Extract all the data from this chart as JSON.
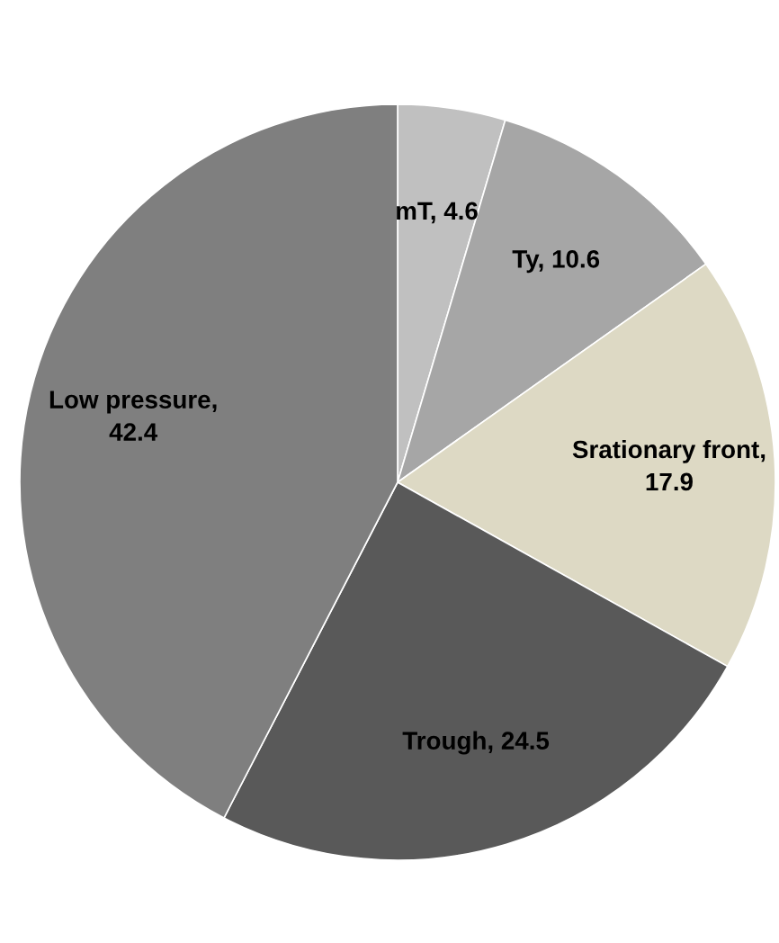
{
  "chart_data": {
    "type": "pie",
    "categories": [
      "mT, 4.6",
      "Ty, 10.6",
      "Srationary front, 17.9",
      "Trough, 24.5",
      "Low pressure, 42.4"
    ],
    "values": [
      4.6,
      10.6,
      17.9,
      24.5,
      42.4
    ],
    "colors": [
      "#c0c0c0",
      "#a6a6a6",
      "#ddd9c4",
      "#595959",
      "#7f7f7f"
    ]
  }
}
